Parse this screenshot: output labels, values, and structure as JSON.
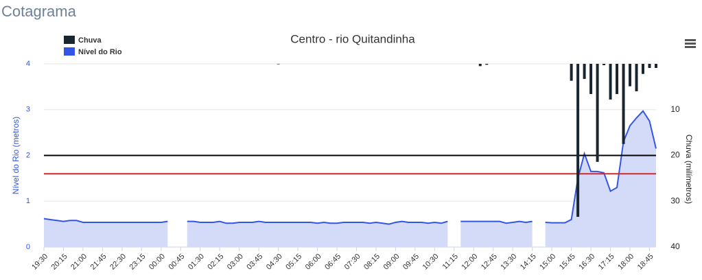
{
  "header": {
    "title": "Cotagrama"
  },
  "chart_data": {
    "type": "area-bar",
    "title": "Centro - rio Quitandinha",
    "y_label": "Nível do Rio (metros)",
    "y2_label": "Chuva (milímetros)",
    "legend": "top-left",
    "grid": true,
    "ylim": [
      0,
      4
    ],
    "yticks": [
      0,
      1,
      2,
      3,
      4
    ],
    "y2lim": [
      0,
      40
    ],
    "y2ticks": [
      10,
      20,
      30,
      40
    ],
    "y2_inverted": true,
    "plot_lines": [
      {
        "value": 2,
        "color": "#000000"
      },
      {
        "value": 1.6,
        "color": "#d62728"
      }
    ],
    "categories": [
      "19:30",
      null,
      null,
      "20:15",
      null,
      null,
      "21:00",
      null,
      null,
      "21:45",
      null,
      null,
      "22:30",
      null,
      null,
      "23:15",
      null,
      null,
      "00:00",
      null,
      null,
      "00:45",
      null,
      null,
      "01:30",
      null,
      null,
      "02:15",
      null,
      null,
      "03:00",
      null,
      null,
      "03:45",
      null,
      null,
      "04:30",
      null,
      null,
      "05:15",
      null,
      null,
      "06:00",
      null,
      null,
      "06:45",
      null,
      null,
      "07:30",
      null,
      null,
      "08:15",
      null,
      null,
      "09:00",
      null,
      null,
      "09:45",
      null,
      null,
      "10:30",
      null,
      null,
      "11:15",
      null,
      null,
      "12:00",
      null,
      null,
      "12:45",
      null,
      null,
      "13:30",
      null,
      null,
      "14:15",
      null,
      null,
      "15:00",
      null,
      null,
      "15:45",
      null,
      null,
      "16:30",
      null,
      null,
      "17:15",
      null,
      null,
      "18:00",
      null,
      null,
      "18:45",
      null
    ],
    "series": [
      {
        "name": "Chuva",
        "color": "#1a2530",
        "axis": "y2",
        "kind": "bar",
        "values": [
          0,
          0,
          0,
          0,
          0,
          0,
          0,
          0,
          0,
          0,
          0,
          0,
          0,
          0,
          0,
          0,
          0,
          0,
          0,
          0,
          0,
          0,
          0,
          0,
          0,
          0,
          0,
          0,
          0,
          0,
          0,
          0,
          0,
          0,
          0,
          0,
          0.1,
          0,
          0,
          0,
          0,
          0,
          0,
          0,
          0,
          0,
          0,
          0,
          0,
          0,
          0,
          0,
          0,
          0,
          0,
          0,
          0,
          0,
          0,
          0,
          0,
          0,
          0,
          0,
          0,
          0,
          0,
          0.5,
          0.2,
          0,
          0,
          0,
          0,
          0,
          0,
          0,
          0,
          0,
          0,
          0,
          0,
          3.7,
          33.4,
          3.3,
          6.6,
          21.4,
          0.3,
          7.8,
          6.6,
          17.5,
          4.9,
          6,
          2.2,
          0.9,
          0.9
        ]
      },
      {
        "name": "Nível do Rio",
        "color": "#3355e6",
        "fill": "#d3dbf8",
        "kind": "area",
        "values": [
          0.62,
          0.6,
          0.58,
          0.56,
          0.58,
          0.58,
          0.54,
          0.54,
          0.54,
          0.54,
          0.54,
          0.54,
          0.54,
          0.54,
          0.54,
          0.54,
          0.54,
          0.54,
          0.54,
          0.56,
          null,
          null,
          0.56,
          0.56,
          0.54,
          0.54,
          0.54,
          0.56,
          0.52,
          0.52,
          0.54,
          0.54,
          0.54,
          0.56,
          0.54,
          0.54,
          0.54,
          0.54,
          0.54,
          0.54,
          0.54,
          0.54,
          0.52,
          0.54,
          0.52,
          0.52,
          0.54,
          0.54,
          0.54,
          0.54,
          0.52,
          0.54,
          0.52,
          0.5,
          0.54,
          0.56,
          0.54,
          0.54,
          0.54,
          0.52,
          0.54,
          0.52,
          0.56,
          null,
          0.56,
          0.56,
          0.56,
          0.56,
          0.56,
          0.56,
          0.56,
          0.52,
          0.54,
          0.56,
          0.54,
          0.56,
          null,
          0.54,
          0.53,
          0.53,
          0.53,
          0.6,
          1.5,
          2.04,
          1.65,
          1.65,
          1.62,
          1.22,
          1.3,
          2.3,
          2.65,
          2.82,
          2.97,
          2.75,
          2.15
        ]
      }
    ]
  }
}
